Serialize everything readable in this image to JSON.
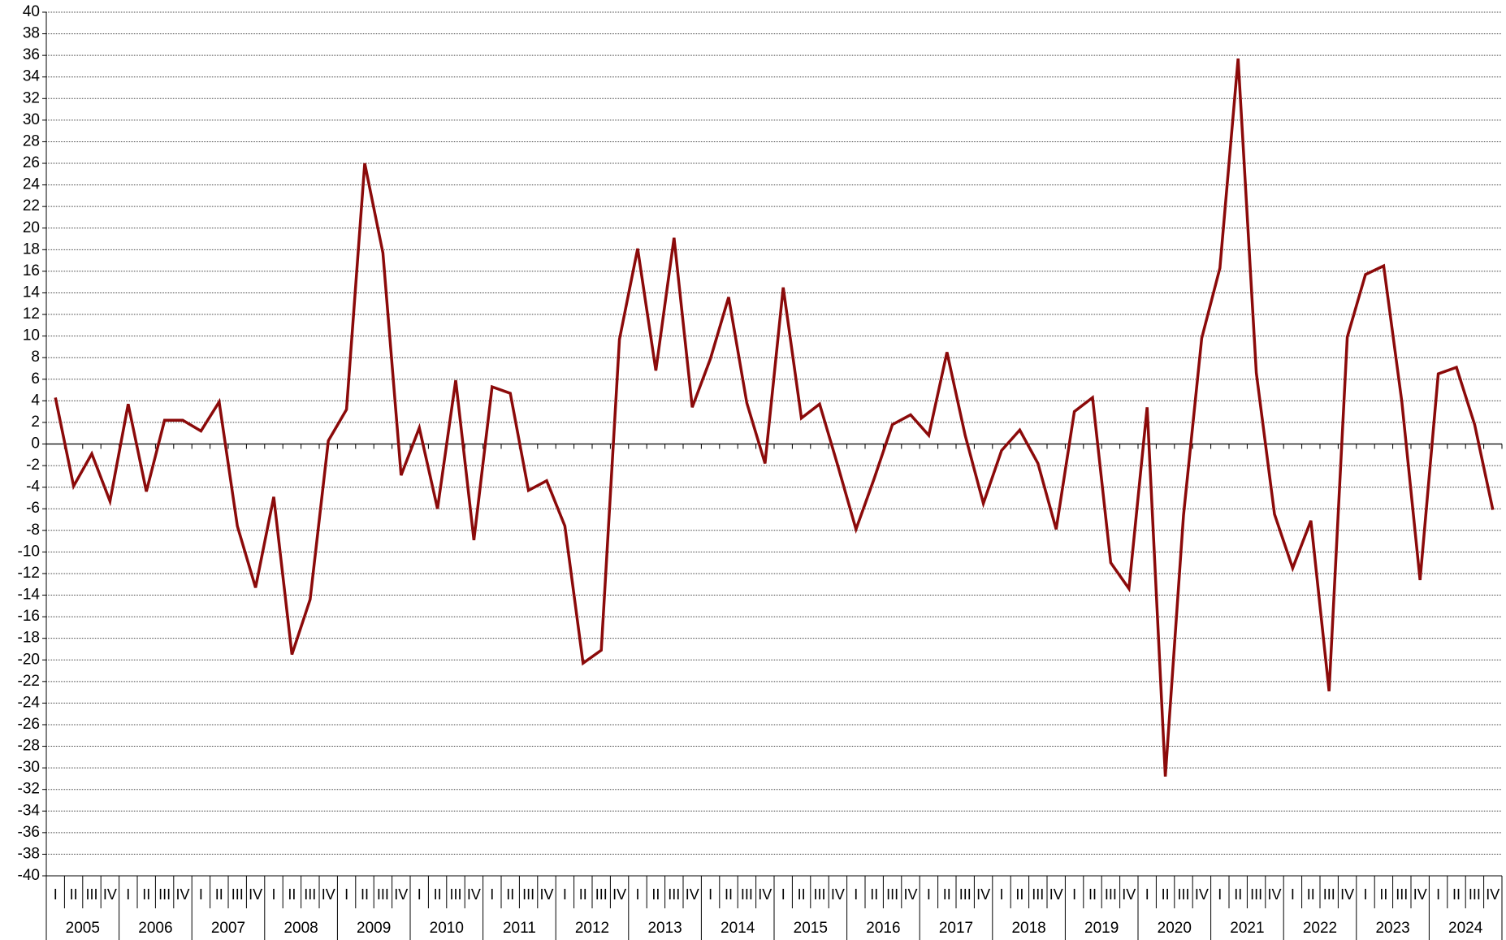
{
  "chart_data": {
    "type": "line",
    "categories": [
      "I",
      "II",
      "III",
      "IV",
      "I",
      "II",
      "III",
      "IV",
      "I",
      "II",
      "III",
      "IV",
      "I",
      "II",
      "III",
      "IV",
      "I",
      "II",
      "III",
      "IV",
      "I",
      "II",
      "III",
      "IV",
      "I",
      "II",
      "III",
      "IV",
      "I",
      "II",
      "III",
      "IV",
      "I",
      "II",
      "III",
      "IV",
      "I",
      "II",
      "III",
      "IV",
      "I",
      "II",
      "III",
      "IV",
      "I",
      "II",
      "III",
      "IV",
      "I",
      "II",
      "III",
      "IV",
      "I",
      "II",
      "III",
      "IV",
      "I",
      "II",
      "III",
      "IV",
      "I",
      "II",
      "III",
      "IV",
      "I",
      "II",
      "III",
      "IV",
      "I",
      "II",
      "III",
      "IV",
      "I",
      "II",
      "III",
      "IV",
      "I",
      "II",
      "III",
      "IV"
    ],
    "groups": [
      "2005",
      "2006",
      "2007",
      "2008",
      "2009",
      "2010",
      "2011",
      "2012",
      "2013",
      "2014",
      "2015",
      "2016",
      "2017",
      "2018",
      "2019",
      "2020",
      "2021",
      "2022",
      "2023",
      "2024"
    ],
    "values": [
      4.3,
      -3.9,
      -0.9,
      -5.3,
      3.7,
      -4.4,
      2.2,
      2.2,
      1.2,
      3.9,
      -7.6,
      -13.3,
      -4.9,
      -19.5,
      -14.4,
      0.3,
      3.2,
      26.0,
      17.7,
      -2.9,
      1.5,
      -6.0,
      5.9,
      -8.9,
      5.3,
      4.7,
      -4.3,
      -3.4,
      -7.6,
      -20.3,
      -19.1,
      9.7,
      18.1,
      6.8,
      19.1,
      3.4,
      7.9,
      13.6,
      3.8,
      -1.8,
      14.5,
      2.4,
      3.7,
      -2.0,
      -7.9,
      -3.2,
      1.8,
      2.7,
      0.8,
      8.5,
      0.8,
      -5.5,
      -0.6,
      1.3,
      -1.8,
      -7.9,
      3.0,
      4.3,
      -11.0,
      -13.4,
      3.4,
      -30.8,
      -6.6,
      9.8,
      16.3,
      35.7,
      6.6,
      -6.5,
      -11.5,
      -7.1,
      -22.9,
      9.9,
      15.7,
      16.5,
      3.9,
      -12.6,
      6.5,
      7.1,
      1.8,
      -6.1
    ],
    "color": "#8b0a0a",
    "ylim": [
      -40,
      40
    ],
    "yticks": [
      40,
      38,
      36,
      34,
      32,
      30,
      28,
      26,
      24,
      22,
      20,
      18,
      16,
      14,
      12,
      10,
      8,
      6,
      4,
      2,
      0,
      -2,
      -4,
      -6,
      -8,
      -10,
      -12,
      -14,
      -16,
      -18,
      -20,
      -22,
      -24,
      -26,
      -28,
      -30,
      -32,
      -34,
      -36,
      -38,
      -40
    ],
    "grid": true
  }
}
